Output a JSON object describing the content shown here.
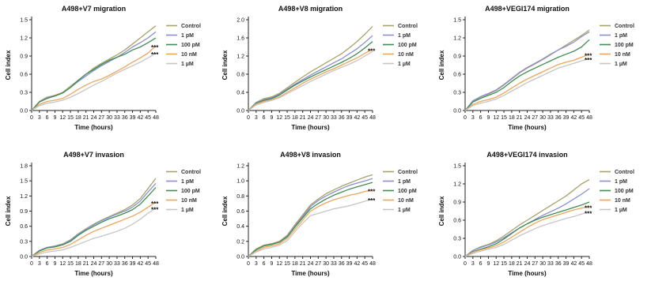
{
  "colors": {
    "Control": "#a8a36a",
    "1 pM": "#8b8fcf",
    "100 pM": "#3f8c54",
    "10 nM": "#f0a45a",
    "1 µM": "#c6c6c6",
    "axis": "#222222"
  },
  "chart_data": [
    {
      "type": "line",
      "title": "A498+V7 migration",
      "xlabel": "Time (hours)",
      "ylabel": "Cell index",
      "x": [
        0,
        3,
        6,
        9,
        12,
        15,
        18,
        21,
        24,
        27,
        30,
        33,
        36,
        39,
        42,
        45,
        48
      ],
      "xticks": [
        "0",
        "3",
        "6",
        "9",
        "12",
        "15",
        "18",
        "21",
        "24",
        "27",
        "30",
        "33",
        "36",
        "39",
        "42",
        "45",
        "48"
      ],
      "ylim": [
        0,
        1.5
      ],
      "yticks": [
        "0.0",
        "0.3",
        "0.6",
        "0.9",
        "1.2",
        "1.5"
      ],
      "legend_position": "right",
      "annotations": [
        "***",
        "***"
      ],
      "series": [
        {
          "name": "Control",
          "values": [
            0,
            0.15,
            0.22,
            0.25,
            0.3,
            0.4,
            0.5,
            0.6,
            0.7,
            0.78,
            0.85,
            0.92,
            1.0,
            1.1,
            1.2,
            1.3,
            1.4
          ]
        },
        {
          "name": "1 pM",
          "values": [
            0,
            0.14,
            0.21,
            0.24,
            0.29,
            0.38,
            0.48,
            0.57,
            0.66,
            0.74,
            0.81,
            0.88,
            0.96,
            1.05,
            1.12,
            1.2,
            1.3
          ]
        },
        {
          "name": "100 pM",
          "values": [
            0,
            0.14,
            0.2,
            0.24,
            0.29,
            0.38,
            0.5,
            0.6,
            0.68,
            0.76,
            0.83,
            0.88,
            0.93,
            1.0,
            1.05,
            1.12,
            1.2
          ]
        },
        {
          "name": "10 nM",
          "values": [
            0,
            0.1,
            0.15,
            0.17,
            0.2,
            0.27,
            0.35,
            0.42,
            0.48,
            0.52,
            0.58,
            0.65,
            0.72,
            0.8,
            0.87,
            0.95,
            1.07
          ]
        },
        {
          "name": "1 µM",
          "values": [
            0,
            0.08,
            0.12,
            0.14,
            0.17,
            0.22,
            0.28,
            0.35,
            0.42,
            0.48,
            0.55,
            0.62,
            0.68,
            0.74,
            0.8,
            0.87,
            0.95
          ]
        }
      ]
    },
    {
      "type": "line",
      "title": "A498+V8 migration",
      "xlabel": "Time (hours)",
      "ylabel": "Cell index",
      "x": [
        0,
        3,
        6,
        9,
        12,
        15,
        18,
        21,
        24,
        27,
        30,
        33,
        36,
        39,
        42,
        45,
        48
      ],
      "xticks": [
        "0",
        "3",
        "6",
        "9",
        "12",
        "15",
        "18",
        "21",
        "24",
        "27",
        "30",
        "33",
        "36",
        "39",
        "42",
        "45",
        "48"
      ],
      "ylim": [
        0,
        2.0
      ],
      "yticks": [
        "0.0",
        "0.4",
        "0.8",
        "1.2",
        "1.6",
        "2.0"
      ],
      "legend_position": "right",
      "annotations": [
        "***"
      ],
      "series": [
        {
          "name": "Control",
          "values": [
            0,
            0.18,
            0.26,
            0.3,
            0.38,
            0.5,
            0.62,
            0.74,
            0.85,
            0.95,
            1.05,
            1.15,
            1.25,
            1.38,
            1.52,
            1.68,
            1.85
          ]
        },
        {
          "name": "1 pM",
          "values": [
            0,
            0.17,
            0.24,
            0.28,
            0.36,
            0.47,
            0.58,
            0.68,
            0.78,
            0.87,
            0.96,
            1.05,
            1.14,
            1.25,
            1.36,
            1.5,
            1.65
          ]
        },
        {
          "name": "100 pM",
          "values": [
            0,
            0.16,
            0.22,
            0.26,
            0.34,
            0.45,
            0.56,
            0.65,
            0.74,
            0.82,
            0.9,
            0.98,
            1.06,
            1.15,
            1.25,
            1.38,
            1.52
          ]
        },
        {
          "name": "10 nM",
          "values": [
            0,
            0.14,
            0.2,
            0.24,
            0.3,
            0.4,
            0.5,
            0.6,
            0.69,
            0.77,
            0.85,
            0.92,
            1.0,
            1.08,
            1.16,
            1.26,
            1.35
          ]
        },
        {
          "name": "1 µM",
          "values": [
            0,
            0.12,
            0.18,
            0.22,
            0.28,
            0.37,
            0.46,
            0.55,
            0.64,
            0.72,
            0.8,
            0.88,
            0.95,
            1.02,
            1.1,
            1.2,
            1.3
          ]
        }
      ]
    },
    {
      "type": "line",
      "title": "A498+VEGI174 migration",
      "xlabel": "Time (hours)",
      "ylabel": "Cell index",
      "x": [
        0,
        3,
        6,
        9,
        12,
        15,
        18,
        21,
        24,
        27,
        30,
        33,
        36,
        39,
        42,
        45,
        48
      ],
      "xticks": [
        "0",
        "3",
        "6",
        "9",
        "12",
        "15",
        "18",
        "21",
        "24",
        "27",
        "30",
        "33",
        "36",
        "39",
        "42",
        "45",
        "48"
      ],
      "ylim": [
        0,
        1.5
      ],
      "yticks": [
        "0.0",
        "0.3",
        "0.6",
        "0.9",
        "1.2",
        "1.5"
      ],
      "legend_position": "right",
      "annotations": [
        "***",
        "***"
      ],
      "series": [
        {
          "name": "Control",
          "values": [
            0,
            0.15,
            0.22,
            0.27,
            0.33,
            0.42,
            0.52,
            0.62,
            0.7,
            0.77,
            0.84,
            0.92,
            1.0,
            1.08,
            1.16,
            1.24,
            1.33
          ]
        },
        {
          "name": "1 pM",
          "values": [
            0,
            0.16,
            0.23,
            0.28,
            0.34,
            0.43,
            0.53,
            0.63,
            0.71,
            0.78,
            0.85,
            0.93,
            1.0,
            1.06,
            1.13,
            1.22,
            1.3
          ]
        },
        {
          "name": "100 pM",
          "values": [
            0,
            0.14,
            0.2,
            0.25,
            0.3,
            0.38,
            0.48,
            0.57,
            0.64,
            0.7,
            0.76,
            0.82,
            0.88,
            0.93,
            0.98,
            1.05,
            1.17
          ]
        },
        {
          "name": "10 nM",
          "values": [
            0,
            0.1,
            0.15,
            0.18,
            0.22,
            0.29,
            0.37,
            0.45,
            0.52,
            0.58,
            0.64,
            0.7,
            0.76,
            0.8,
            0.83,
            0.88,
            0.93
          ]
        },
        {
          "name": "1 µM",
          "values": [
            0,
            0.08,
            0.12,
            0.15,
            0.19,
            0.25,
            0.32,
            0.39,
            0.46,
            0.52,
            0.58,
            0.64,
            0.7,
            0.74,
            0.78,
            0.82,
            0.86
          ]
        }
      ]
    },
    {
      "type": "line",
      "title": "A498+V7 invasion",
      "xlabel": "Time (hours)",
      "ylabel": "Cell index",
      "x": [
        0,
        3,
        6,
        9,
        12,
        15,
        18,
        21,
        24,
        27,
        30,
        33,
        36,
        39,
        42,
        45,
        48
      ],
      "xticks": [
        "0",
        "3",
        "6",
        "9",
        "12",
        "15",
        "18",
        "21",
        "24",
        "27",
        "30",
        "33",
        "36",
        "39",
        "42",
        "45",
        "48"
      ],
      "ylim": [
        0,
        1.8
      ],
      "yticks": [
        "0.0",
        "0.3",
        "0.6",
        "0.9",
        "1.2",
        "1.5",
        "1.8"
      ],
      "legend_position": "right",
      "annotations": [
        "***",
        "***"
      ],
      "series": [
        {
          "name": "Control",
          "values": [
            0,
            0.12,
            0.18,
            0.21,
            0.25,
            0.33,
            0.45,
            0.55,
            0.64,
            0.72,
            0.79,
            0.86,
            0.93,
            1.02,
            1.15,
            1.35,
            1.55
          ]
        },
        {
          "name": "1 pM",
          "values": [
            0,
            0.12,
            0.18,
            0.2,
            0.24,
            0.32,
            0.44,
            0.54,
            0.63,
            0.71,
            0.78,
            0.84,
            0.9,
            0.98,
            1.1,
            1.28,
            1.45
          ]
        },
        {
          "name": "100 pM",
          "values": [
            0,
            0.11,
            0.17,
            0.19,
            0.23,
            0.3,
            0.42,
            0.52,
            0.6,
            0.68,
            0.75,
            0.8,
            0.86,
            0.93,
            1.04,
            1.2,
            1.37
          ]
        },
        {
          "name": "10 nM",
          "values": [
            0,
            0.08,
            0.13,
            0.15,
            0.18,
            0.24,
            0.33,
            0.42,
            0.5,
            0.56,
            0.62,
            0.68,
            0.74,
            0.8,
            0.88,
            0.98,
            1.08
          ]
        },
        {
          "name": "1 µM",
          "values": [
            0,
            0.05,
            0.09,
            0.11,
            0.13,
            0.18,
            0.24,
            0.3,
            0.36,
            0.4,
            0.45,
            0.5,
            0.56,
            0.64,
            0.74,
            0.86,
            0.96
          ]
        }
      ]
    },
    {
      "type": "line",
      "title": "A498+V8 invasion",
      "xlabel": "Time (hours)",
      "ylabel": "Cell index",
      "x": [
        0,
        3,
        6,
        9,
        12,
        15,
        18,
        21,
        24,
        27,
        30,
        33,
        36,
        39,
        42,
        45,
        48
      ],
      "xticks": [
        "0",
        "3",
        "6",
        "9",
        "12",
        "15",
        "18",
        "21",
        "24",
        "27",
        "30",
        "33",
        "36",
        "39",
        "42",
        "45",
        "48"
      ],
      "ylim": [
        0,
        1.2
      ],
      "yticks": [
        "0.0",
        "0.2",
        "0.4",
        "0.6",
        "0.8",
        "1.0",
        "1.2"
      ],
      "legend_position": "right",
      "annotations": [
        "***",
        "***"
      ],
      "series": [
        {
          "name": "Control",
          "values": [
            0,
            0.1,
            0.15,
            0.17,
            0.2,
            0.28,
            0.42,
            0.55,
            0.68,
            0.76,
            0.83,
            0.88,
            0.93,
            0.97,
            1.01,
            1.05,
            1.08
          ]
        },
        {
          "name": "1 pM",
          "values": [
            0,
            0.09,
            0.14,
            0.16,
            0.19,
            0.27,
            0.4,
            0.53,
            0.66,
            0.74,
            0.8,
            0.85,
            0.9,
            0.94,
            0.97,
            1.0,
            1.03
          ]
        },
        {
          "name": "100 pM",
          "values": [
            0,
            0.09,
            0.14,
            0.16,
            0.19,
            0.26,
            0.39,
            0.51,
            0.63,
            0.7,
            0.76,
            0.81,
            0.85,
            0.89,
            0.92,
            0.95,
            0.98
          ]
        },
        {
          "name": "10 nM",
          "values": [
            0,
            0.07,
            0.12,
            0.14,
            0.17,
            0.24,
            0.36,
            0.48,
            0.6,
            0.66,
            0.71,
            0.75,
            0.78,
            0.81,
            0.83,
            0.86,
            0.88
          ]
        },
        {
          "name": "1 µM",
          "values": [
            0,
            0.06,
            0.1,
            0.12,
            0.15,
            0.21,
            0.33,
            0.44,
            0.54,
            0.57,
            0.6,
            0.63,
            0.65,
            0.67,
            0.7,
            0.73,
            0.76
          ]
        }
      ]
    },
    {
      "type": "line",
      "title": "A498+VEGI174 invasion",
      "xlabel": "Time (hours)",
      "ylabel": "Cell index",
      "x": [
        0,
        3,
        6,
        9,
        12,
        15,
        18,
        21,
        24,
        27,
        30,
        33,
        36,
        39,
        42,
        45,
        48
      ],
      "xticks": [
        "0",
        "3",
        "6",
        "9",
        "12",
        "15",
        "18",
        "21",
        "24",
        "27",
        "30",
        "33",
        "36",
        "39",
        "42",
        "45",
        "48"
      ],
      "ylim": [
        0,
        1.5
      ],
      "yticks": [
        "0.0",
        "0.3",
        "0.6",
        "0.9",
        "1.2",
        "1.5"
      ],
      "legend_position": "right",
      "annotations": [
        "***",
        "***"
      ],
      "series": [
        {
          "name": "Control",
          "values": [
            0,
            0.1,
            0.16,
            0.2,
            0.26,
            0.34,
            0.43,
            0.52,
            0.6,
            0.68,
            0.76,
            0.84,
            0.92,
            1.0,
            1.1,
            1.2,
            1.27
          ]
        },
        {
          "name": "1 pM",
          "values": [
            0,
            0.1,
            0.15,
            0.19,
            0.24,
            0.31,
            0.39,
            0.47,
            0.54,
            0.61,
            0.68,
            0.74,
            0.8,
            0.87,
            0.95,
            1.03,
            1.12
          ]
        },
        {
          "name": "100 pM",
          "values": [
            0,
            0.08,
            0.12,
            0.16,
            0.21,
            0.29,
            0.38,
            0.47,
            0.54,
            0.6,
            0.65,
            0.69,
            0.73,
            0.77,
            0.81,
            0.85,
            0.9
          ]
        },
        {
          "name": "10 nM",
          "values": [
            0,
            0.07,
            0.11,
            0.14,
            0.18,
            0.24,
            0.32,
            0.4,
            0.48,
            0.55,
            0.61,
            0.65,
            0.69,
            0.73,
            0.77,
            0.8,
            0.83
          ]
        },
        {
          "name": "1 µM",
          "values": [
            0,
            0.05,
            0.09,
            0.12,
            0.15,
            0.2,
            0.27,
            0.34,
            0.4,
            0.46,
            0.51,
            0.55,
            0.59,
            0.63,
            0.66,
            0.7,
            0.74
          ]
        }
      ]
    }
  ]
}
